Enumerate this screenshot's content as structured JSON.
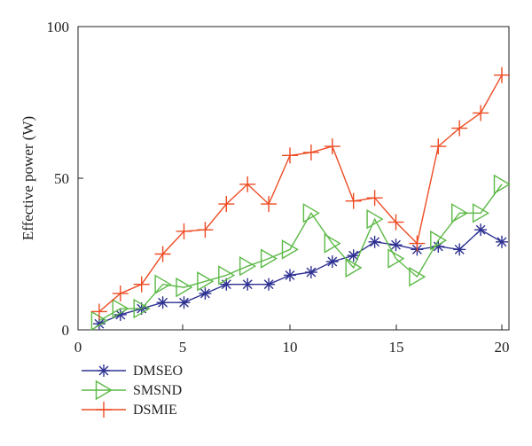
{
  "chart_data": {
    "type": "line",
    "title": "",
    "xlabel": "",
    "ylabel": "Effective power (W)",
    "xlim": [
      0,
      20
    ],
    "ylim": [
      0,
      100
    ],
    "xticks": [
      0,
      5,
      10,
      15,
      20
    ],
    "yticks": [
      0,
      50,
      100
    ],
    "grid": false,
    "legend_position": "below-left",
    "x": [
      1,
      2,
      3,
      4,
      5,
      6,
      7,
      8,
      9,
      10,
      11,
      12,
      13,
      14,
      15,
      16,
      17,
      18,
      19,
      20
    ],
    "series": [
      {
        "name": "DMSEO",
        "color": "#2e3192",
        "marker": "asterisk",
        "values": [
          2,
          5,
          7,
          9,
          9,
          12,
          15,
          15,
          15,
          18,
          19,
          22.5,
          24.5,
          29,
          28,
          26.5,
          27.5,
          26.5,
          33,
          29
        ]
      },
      {
        "name": "SMSND",
        "color": "#5cb946",
        "marker": "triangle-right",
        "values": [
          3,
          7,
          7,
          15,
          14,
          16,
          18,
          21,
          23.5,
          26.5,
          38.5,
          28.5,
          20.5,
          36.5,
          23.5,
          17.5,
          29.5,
          38.5,
          38.5,
          48
        ]
      },
      {
        "name": "DSMIE",
        "color": "#ee4b23",
        "marker": "plus",
        "values": [
          6,
          12,
          15,
          25,
          32.5,
          33,
          41.5,
          48,
          41.5,
          57.5,
          58.5,
          60.5,
          42.5,
          43.5,
          35.5,
          28.5,
          60.5,
          66.5,
          71.5,
          84
        ]
      }
    ]
  }
}
